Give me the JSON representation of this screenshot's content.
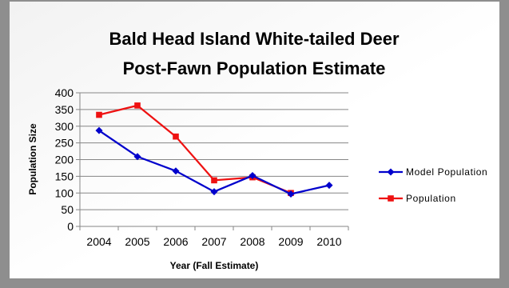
{
  "chart_data": {
    "type": "line",
    "title_line1": "Bald Head Island White-tailed Deer",
    "title_line2": "Post-Fawn Population Estimate",
    "xlabel": "Year (Fall Estimate)",
    "ylabel": "Population Size",
    "categories": [
      "2004",
      "2005",
      "2006",
      "2007",
      "2008",
      "2009",
      "2010"
    ],
    "ylim": [
      0,
      400
    ],
    "yticks": [
      0,
      50,
      100,
      150,
      200,
      250,
      300,
      350,
      400
    ],
    "grid": true,
    "legend_position": "right",
    "series": [
      {
        "name": "Model Population",
        "color": "#0000cc",
        "marker": "diamond",
        "values": [
          287,
          209,
          166,
          104,
          152,
          97,
          123
        ]
      },
      {
        "name": "Population",
        "color": "#ee1111",
        "marker": "square",
        "values": [
          334,
          362,
          269,
          138,
          147,
          100,
          null
        ]
      }
    ]
  }
}
